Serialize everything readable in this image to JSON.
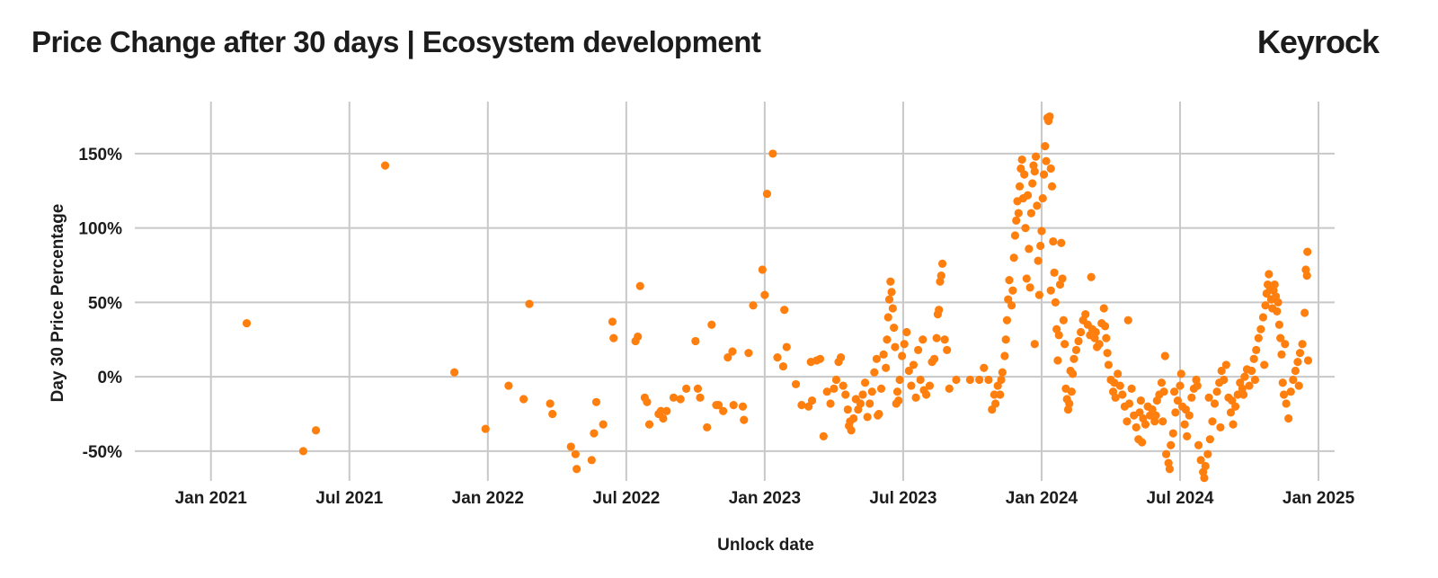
{
  "header": {
    "title": "Price Change after 30 days | Ecosystem development",
    "brand": "Keyrock"
  },
  "colors": {
    "point": "#ff7f0e",
    "grid": "#c8c8c8",
    "text": "#1c1c1c"
  },
  "chart_data": {
    "type": "scatter",
    "title": "Price Change after 30 days | Ecosystem development",
    "xlabel": "Unlock date",
    "ylabel": "Day 30 Price Percentage",
    "x_ticks": [
      "Jan 2021",
      "Jul 2021",
      "Jan 2022",
      "Jul 2022",
      "Jan 2023",
      "Jul 2023",
      "Jan 2024",
      "Jul 2024",
      "Jan 2025"
    ],
    "x_tick_values": [
      0,
      6,
      12,
      18,
      24,
      30,
      36,
      42,
      48
    ],
    "x_unit": "months since Jan 2021",
    "xlim": [
      -3.3,
      48.7
    ],
    "y_ticks": [
      "150%",
      "100%",
      "50%",
      "0%",
      "-50%"
    ],
    "y_tick_values": [
      150,
      100,
      50,
      0,
      -50
    ],
    "ylim": [
      -70,
      185
    ],
    "points": [
      [
        1.55,
        36
      ],
      [
        4.0,
        -50
      ],
      [
        4.55,
        -36
      ],
      [
        7.55,
        142
      ],
      [
        10.55,
        3
      ],
      [
        11.9,
        -35
      ],
      [
        12.9,
        -6
      ],
      [
        13.55,
        -15
      ],
      [
        13.8,
        49
      ],
      [
        14.7,
        -18
      ],
      [
        14.8,
        -25
      ],
      [
        15.6,
        -47
      ],
      [
        15.8,
        -52
      ],
      [
        15.85,
        -62
      ],
      [
        16.5,
        -56
      ],
      [
        16.6,
        -38
      ],
      [
        16.7,
        -17
      ],
      [
        17.0,
        -32
      ],
      [
        17.4,
        37
      ],
      [
        17.45,
        26
      ],
      [
        18.4,
        24
      ],
      [
        18.5,
        27
      ],
      [
        18.6,
        61
      ],
      [
        18.8,
        -14
      ],
      [
        18.9,
        -17
      ],
      [
        19.0,
        -32
      ],
      [
        19.4,
        -25
      ],
      [
        19.5,
        -23
      ],
      [
        19.6,
        -28
      ],
      [
        19.75,
        -23
      ],
      [
        20.05,
        -14
      ],
      [
        20.35,
        -15
      ],
      [
        20.6,
        -8
      ],
      [
        21.0,
        24
      ],
      [
        21.1,
        -8
      ],
      [
        21.2,
        -14
      ],
      [
        21.5,
        -34
      ],
      [
        21.7,
        35
      ],
      [
        21.9,
        -19
      ],
      [
        22.0,
        -19
      ],
      [
        22.2,
        -23
      ],
      [
        22.4,
        13
      ],
      [
        22.6,
        17
      ],
      [
        22.65,
        -19
      ],
      [
        23.05,
        -20
      ],
      [
        23.1,
        -29
      ],
      [
        23.3,
        16
      ],
      [
        23.5,
        48
      ],
      [
        23.9,
        72
      ],
      [
        24.0,
        55
      ],
      [
        24.1,
        123
      ],
      [
        24.35,
        150
      ],
      [
        24.55,
        13
      ],
      [
        24.8,
        7
      ],
      [
        24.85,
        45
      ],
      [
        24.95,
        20
      ],
      [
        25.35,
        -5
      ],
      [
        25.6,
        -19
      ],
      [
        25.9,
        -20
      ],
      [
        26.0,
        10
      ],
      [
        26.05,
        -16
      ],
      [
        26.25,
        11
      ],
      [
        26.4,
        12
      ],
      [
        26.7,
        -10
      ],
      [
        26.85,
        -18
      ],
      [
        27.0,
        -8
      ],
      [
        27.1,
        -2
      ],
      [
        27.2,
        10
      ],
      [
        27.3,
        13
      ],
      [
        27.4,
        -6
      ],
      [
        27.5,
        -12
      ],
      [
        27.6,
        -22
      ],
      [
        27.7,
        -30
      ],
      [
        27.75,
        -36
      ],
      [
        27.85,
        -28
      ],
      [
        27.95,
        -15
      ],
      [
        28.05,
        -22
      ],
      [
        28.15,
        -18
      ],
      [
        28.25,
        -12
      ],
      [
        28.35,
        -4
      ],
      [
        28.45,
        -27
      ],
      [
        28.55,
        -18
      ],
      [
        28.65,
        -10
      ],
      [
        28.75,
        3
      ],
      [
        28.85,
        12
      ],
      [
        28.95,
        -25
      ],
      [
        29.05,
        -8
      ],
      [
        29.15,
        15
      ],
      [
        29.25,
        6
      ],
      [
        29.3,
        25
      ],
      [
        29.35,
        40
      ],
      [
        29.4,
        52
      ],
      [
        29.45,
        64
      ],
      [
        29.5,
        57
      ],
      [
        29.55,
        46
      ],
      [
        29.6,
        33
      ],
      [
        29.65,
        20
      ],
      [
        29.7,
        -18
      ],
      [
        29.75,
        -10
      ],
      [
        29.85,
        -2
      ],
      [
        29.95,
        14
      ],
      [
        30.05,
        22
      ],
      [
        30.15,
        30
      ],
      [
        30.25,
        4
      ],
      [
        30.35,
        -6
      ],
      [
        30.45,
        8
      ],
      [
        30.55,
        -14
      ],
      [
        30.65,
        18
      ],
      [
        30.75,
        -2
      ],
      [
        30.85,
        25
      ],
      [
        31.0,
        -12
      ],
      [
        31.15,
        -6
      ],
      [
        31.25,
        10
      ],
      [
        31.35,
        12
      ],
      [
        31.45,
        26
      ],
      [
        31.5,
        42
      ],
      [
        31.55,
        45
      ],
      [
        31.6,
        64
      ],
      [
        31.65,
        68
      ],
      [
        31.7,
        76
      ],
      [
        31.8,
        25
      ],
      [
        31.9,
        18
      ],
      [
        32.0,
        -8
      ],
      [
        32.3,
        -2
      ],
      [
        32.9,
        -2
      ],
      [
        33.3,
        -2
      ],
      [
        33.5,
        6
      ],
      [
        33.7,
        -2
      ],
      [
        33.85,
        -22
      ],
      [
        34.0,
        -18
      ],
      [
        34.1,
        -6
      ],
      [
        34.2,
        -12
      ],
      [
        34.3,
        3
      ],
      [
        34.4,
        14
      ],
      [
        34.45,
        25
      ],
      [
        34.5,
        38
      ],
      [
        34.55,
        52
      ],
      [
        34.6,
        65
      ],
      [
        34.7,
        48
      ],
      [
        34.75,
        58
      ],
      [
        34.8,
        80
      ],
      [
        34.85,
        95
      ],
      [
        34.9,
        105
      ],
      [
        34.95,
        118
      ],
      [
        35.0,
        110
      ],
      [
        35.05,
        128
      ],
      [
        35.1,
        140
      ],
      [
        35.15,
        146
      ],
      [
        35.2,
        120
      ],
      [
        35.25,
        136
      ],
      [
        35.3,
        100
      ],
      [
        35.35,
        66
      ],
      [
        35.4,
        122
      ],
      [
        35.45,
        86
      ],
      [
        35.5,
        60
      ],
      [
        35.55,
        110
      ],
      [
        35.6,
        130
      ],
      [
        35.65,
        142
      ],
      [
        35.7,
        138
      ],
      [
        35.75,
        148
      ],
      [
        35.8,
        115
      ],
      [
        35.85,
        78
      ],
      [
        35.9,
        55
      ],
      [
        35.95,
        88
      ],
      [
        36.0,
        98
      ],
      [
        36.05,
        120
      ],
      [
        36.1,
        136
      ],
      [
        36.15,
        155
      ],
      [
        36.2,
        145
      ],
      [
        36.25,
        174
      ],
      [
        36.3,
        172
      ],
      [
        36.35,
        175
      ],
      [
        36.4,
        140
      ],
      [
        36.45,
        128
      ],
      [
        36.5,
        91
      ],
      [
        36.55,
        70
      ],
      [
        36.6,
        50
      ],
      [
        36.65,
        32
      ],
      [
        36.7,
        11
      ],
      [
        36.75,
        28
      ],
      [
        36.8,
        62
      ],
      [
        36.85,
        90
      ],
      [
        36.9,
        66
      ],
      [
        36.95,
        38
      ],
      [
        37.0,
        22
      ],
      [
        37.05,
        -8
      ],
      [
        37.1,
        -15
      ],
      [
        37.15,
        -22
      ],
      [
        37.2,
        -18
      ],
      [
        37.3,
        -10
      ],
      [
        37.35,
        2
      ],
      [
        37.4,
        12
      ],
      [
        37.5,
        18
      ],
      [
        37.6,
        24
      ],
      [
        37.7,
        30
      ],
      [
        37.8,
        38
      ],
      [
        37.9,
        42
      ],
      [
        38.0,
        35
      ],
      [
        38.1,
        28
      ],
      [
        38.15,
        67
      ],
      [
        38.2,
        32
      ],
      [
        38.3,
        26
      ],
      [
        38.4,
        20
      ],
      [
        38.5,
        22
      ],
      [
        38.6,
        36
      ],
      [
        38.7,
        46
      ],
      [
        38.75,
        34
      ],
      [
        38.8,
        26
      ],
      [
        38.85,
        16
      ],
      [
        38.9,
        8
      ],
      [
        39.0,
        -2
      ],
      [
        39.1,
        -10
      ],
      [
        39.2,
        -14
      ],
      [
        39.3,
        2
      ],
      [
        39.4,
        -6
      ],
      [
        39.5,
        -12
      ],
      [
        39.6,
        -20
      ],
      [
        39.7,
        -30
      ],
      [
        39.75,
        38
      ],
      [
        39.8,
        -18
      ],
      [
        39.9,
        -8
      ],
      [
        40.0,
        -26
      ],
      [
        40.1,
        -34
      ],
      [
        40.2,
        -42
      ],
      [
        40.25,
        -24
      ],
      [
        40.3,
        -16
      ],
      [
        40.4,
        -28
      ],
      [
        40.5,
        -32
      ],
      [
        40.6,
        -20
      ],
      [
        40.7,
        -26
      ],
      [
        40.8,
        -22
      ],
      [
        40.9,
        -30
      ],
      [
        41.0,
        -16
      ],
      [
        41.1,
        -12
      ],
      [
        41.2,
        -4
      ],
      [
        41.3,
        -10
      ],
      [
        41.35,
        14
      ],
      [
        41.4,
        -52
      ],
      [
        41.5,
        -58
      ],
      [
        41.55,
        -62
      ],
      [
        41.6,
        -46
      ],
      [
        41.7,
        -38
      ],
      [
        41.8,
        -24
      ],
      [
        41.9,
        -16
      ],
      [
        42.0,
        -6
      ],
      [
        42.05,
        2
      ],
      [
        42.1,
        -20
      ],
      [
        42.2,
        -32
      ],
      [
        42.3,
        -40
      ],
      [
        42.4,
        -26
      ],
      [
        42.5,
        -14
      ],
      [
        42.6,
        -8
      ],
      [
        42.7,
        -2
      ],
      [
        42.8,
        -46
      ],
      [
        42.9,
        -56
      ],
      [
        43.0,
        -64
      ],
      [
        43.05,
        -68
      ],
      [
        43.1,
        -60
      ],
      [
        43.2,
        -52
      ],
      [
        43.3,
        -42
      ],
      [
        43.4,
        -30
      ],
      [
        43.5,
        -18
      ],
      [
        43.6,
        -10
      ],
      [
        43.7,
        -4
      ],
      [
        43.8,
        4
      ],
      [
        43.9,
        -2
      ],
      [
        44.0,
        8
      ],
      [
        44.1,
        -14
      ],
      [
        44.2,
        -24
      ],
      [
        44.3,
        -32
      ],
      [
        44.4,
        -20
      ],
      [
        44.5,
        -12
      ],
      [
        44.6,
        -4
      ],
      [
        44.7,
        -8
      ],
      [
        44.8,
        0
      ],
      [
        44.9,
        5
      ],
      [
        45.0,
        -6
      ],
      [
        45.1,
        4
      ],
      [
        45.2,
        12
      ],
      [
        45.3,
        18
      ],
      [
        45.4,
        26
      ],
      [
        45.5,
        32
      ],
      [
        45.6,
        40
      ],
      [
        45.7,
        48
      ],
      [
        45.75,
        56
      ],
      [
        45.8,
        62
      ],
      [
        45.85,
        69
      ],
      [
        45.9,
        60
      ],
      [
        45.95,
        52
      ],
      [
        46.0,
        46
      ],
      [
        46.05,
        58
      ],
      [
        46.1,
        62
      ],
      [
        46.15,
        54
      ],
      [
        46.2,
        44
      ],
      [
        46.3,
        35
      ],
      [
        46.35,
        26
      ],
      [
        46.4,
        15
      ],
      [
        46.45,
        -4
      ],
      [
        46.5,
        -12
      ],
      [
        46.6,
        -18
      ],
      [
        46.7,
        -28
      ],
      [
        46.8,
        -10
      ],
      [
        46.9,
        -2
      ],
      [
        47.0,
        4
      ],
      [
        47.1,
        10
      ],
      [
        47.2,
        16
      ],
      [
        47.3,
        22
      ],
      [
        47.4,
        43
      ],
      [
        47.45,
        72
      ],
      [
        47.5,
        68
      ],
      [
        47.52,
        84
      ],
      [
        47.55,
        11
      ],
      [
        26.55,
        -40
      ],
      [
        27.65,
        -33
      ],
      [
        28.9,
        -26
      ],
      [
        29.8,
        -16
      ],
      [
        30.9,
        -9
      ],
      [
        33.95,
        -12
      ],
      [
        34.25,
        -2
      ],
      [
        35.7,
        22
      ],
      [
        36.4,
        58
      ],
      [
        37.25,
        4
      ],
      [
        38.35,
        30
      ],
      [
        39.15,
        -4
      ],
      [
        40.35,
        -44
      ],
      [
        40.95,
        -26
      ],
      [
        41.25,
        -30
      ],
      [
        41.75,
        -10
      ],
      [
        42.25,
        -22
      ],
      [
        42.75,
        -6
      ],
      [
        43.25,
        -14
      ],
      [
        43.75,
        -34
      ],
      [
        44.25,
        -16
      ],
      [
        44.75,
        -12
      ],
      [
        45.25,
        -2
      ],
      [
        45.65,
        8
      ],
      [
        46.25,
        50
      ],
      [
        46.55,
        22
      ],
      [
        47.15,
        -6
      ]
    ]
  }
}
